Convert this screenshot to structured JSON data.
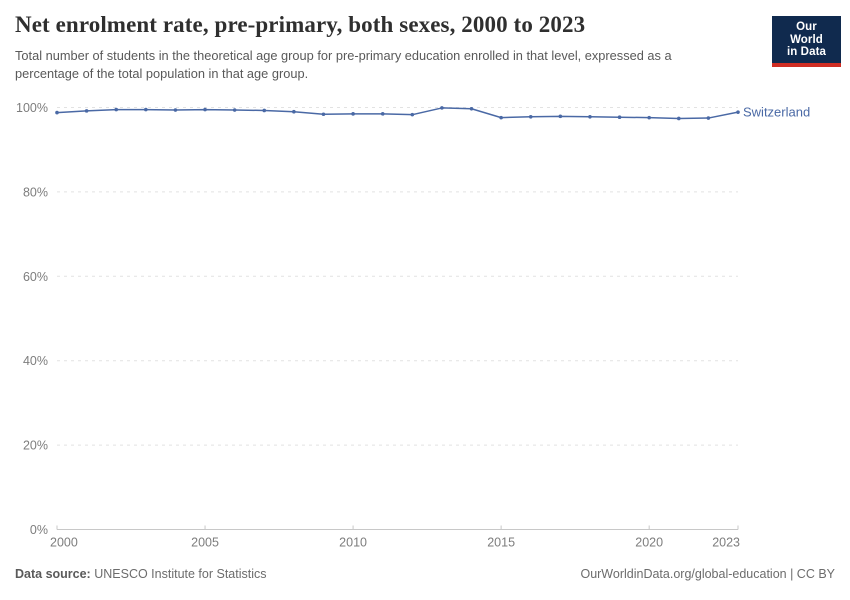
{
  "header": {
    "title": "Net enrolment rate, pre-primary, both sexes, 2000 to 2023",
    "subtitle": "Total number of students in the theoretical age group for pre-primary education enrolled in that level, expressed as a percentage of the total population in that age group.",
    "logo": {
      "line1": "Our World",
      "line2": "in Data",
      "background_color": "#102a4e",
      "stripe_color": "#cf2d23"
    }
  },
  "chart_data": {
    "type": "line",
    "title": "Net enrolment rate, pre-primary, both sexes, 2000 to 2023",
    "xlabel": "",
    "ylabel": "",
    "x": [
      2000,
      2001,
      2002,
      2003,
      2004,
      2005,
      2006,
      2007,
      2008,
      2009,
      2010,
      2011,
      2012,
      2013,
      2014,
      2015,
      2016,
      2017,
      2018,
      2019,
      2020,
      2021,
      2022,
      2023
    ],
    "series": [
      {
        "name": "Switzerland",
        "color": "#4a69a5",
        "values": [
          98.8,
          99.2,
          99.5,
          99.5,
          99.4,
          99.5,
          99.4,
          99.3,
          99.0,
          98.4,
          98.5,
          98.5,
          98.3,
          99.9,
          99.7,
          97.6,
          97.8,
          97.9,
          97.8,
          97.7,
          97.6,
          97.4,
          97.5,
          98.9
        ]
      }
    ],
    "ylim": [
      0,
      100
    ],
    "xlim": [
      2000,
      2023
    ],
    "yticks": [
      0,
      20,
      40,
      60,
      80,
      100
    ],
    "ytick_suffix": "%",
    "xticks": [
      2000,
      2005,
      2010,
      2015,
      2020,
      2023
    ],
    "grid": "horizontal-dashed",
    "legend_position": "end-of-line-label",
    "colors": {
      "gridline": "#e2e2e2",
      "axis_line": "#c8c8c8",
      "tick_label": "#7d7d7d"
    }
  },
  "footer": {
    "source_label": "Data source:",
    "source_value": "UNESCO Institute for Statistics",
    "attribution": "OurWorldinData.org/global-education | CC BY"
  }
}
